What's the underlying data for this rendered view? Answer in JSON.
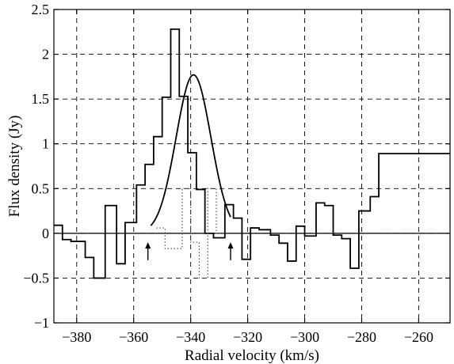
{
  "chart_data": {
    "type": "line",
    "title": "",
    "xlabel": "Radial velocity (km/s)",
    "ylabel": "Flux density (Jy)",
    "xlim": [
      -388,
      -249
    ],
    "ylim": [
      -1,
      2.5
    ],
    "grid": true,
    "x_ticks": [
      -380,
      -360,
      -340,
      -320,
      -300,
      -280,
      -260
    ],
    "y_ticks": [
      -1,
      -0.5,
      0,
      0.5,
      1,
      1.5,
      2,
      2.5
    ],
    "x_tick_labels": [
      "−380",
      "−360",
      "−340",
      "−320",
      "−300",
      "−280",
      "−260"
    ],
    "y_tick_labels": [
      "−1",
      "−0.5",
      "0",
      "0.5",
      "1",
      "1.5",
      "2",
      "2.5"
    ],
    "series": [
      {
        "style": "step-solid",
        "color": "#000000",
        "edges": [
          -388,
          -385,
          -382,
          -377,
          -374,
          -370,
          -366,
          -363,
          -359,
          -356,
          -353,
          -350,
          -347,
          -344,
          -341,
          -338,
          -335,
          -332,
          -328,
          -325,
          -322,
          -319,
          -316,
          -312,
          -309,
          -306,
          -303,
          -300,
          -296,
          -293,
          -290,
          -287,
          -284,
          -281,
          -277,
          -274,
          -271,
          -268,
          -265,
          -262,
          -259,
          -256,
          -253,
          -249
        ],
        "values": [
          0.09,
          -0.07,
          -0.09,
          -0.27,
          -0.5,
          0.31,
          -0.34,
          0.12,
          0.54,
          0.77,
          1.08,
          1.52,
          2.28,
          1.53,
          0.9,
          0.49,
          0.0,
          -0.05,
          0.32,
          0.17,
          -0.29,
          0.06,
          0.04,
          -0.02,
          -0.11,
          -0.31,
          0.08,
          -0.03,
          0.34,
          0.31,
          -0.02,
          -0.06,
          -0.39,
          0.25,
          0.41,
          0.89,
          0.89,
          0.89,
          0.89,
          0.89,
          0.89,
          0.89,
          0.89
        ]
      },
      {
        "style": "step-dotted",
        "color": "#555555",
        "edges": [
          -352,
          -349,
          -346,
          -343,
          -340,
          -337,
          -334,
          -331,
          -328
        ],
        "values": [
          0.06,
          -0.17,
          -0.17,
          0.5,
          -0.1,
          -0.5,
          0.5,
          0.0
        ]
      },
      {
        "style": "gaussian-fit",
        "color": "#000000",
        "amplitude": 1.77,
        "center": -339,
        "sigma": 6.1,
        "range": [
          -354,
          -326
        ]
      }
    ],
    "annotations": [
      {
        "type": "arrow-up",
        "x": -355,
        "y_from": -0.3,
        "y_to": -0.1
      },
      {
        "type": "arrow-up",
        "x": -326,
        "y_from": -0.3,
        "y_to": -0.1
      }
    ]
  }
}
